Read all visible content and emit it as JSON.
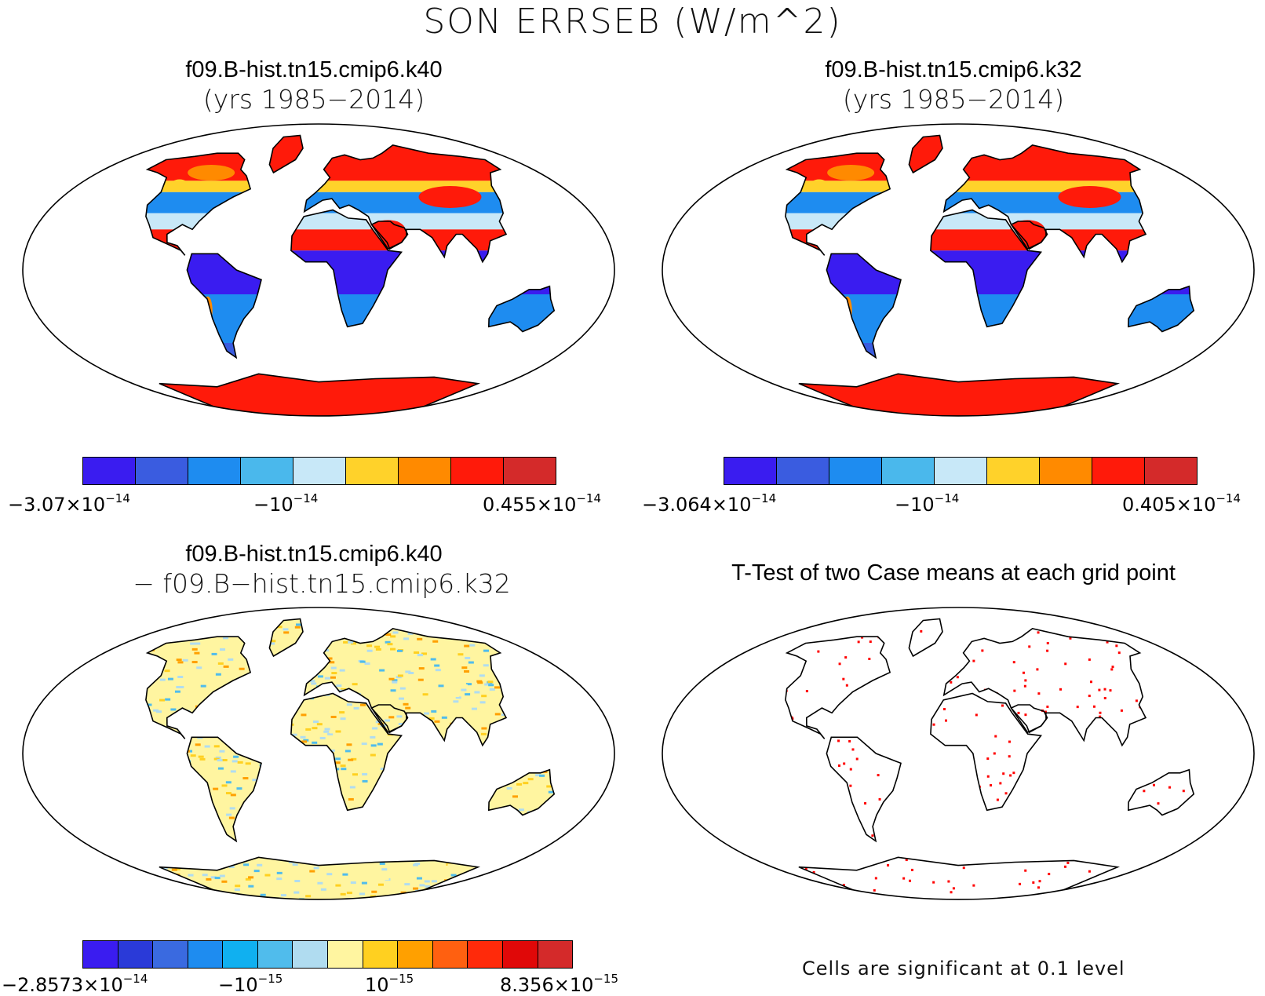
{
  "title": "SON ERRSEB (W/m^2)",
  "panels": {
    "k40": {
      "title": "f09.B-hist.tn15.cmip6.k40",
      "subtitle": "(yrs 1985−2014)"
    },
    "k32": {
      "title": "f09.B-hist.tn15.cmip6.k32",
      "subtitle": "(yrs 1985−2014)"
    },
    "diff": {
      "title": "f09.B-hist.tn15.cmip6.k40",
      "subtitle": "−  f09.B−hist.tn15.cmip6.k32"
    },
    "ttest": {
      "title": "T-Test of two Case means at each grid point",
      "note": "Cells are significant at 0.1 level"
    }
  },
  "colorbars": {
    "k40": {
      "colors": [
        "#3a1cf0",
        "#3a5ce0",
        "#1e8cf0",
        "#4ab8ec",
        "#c8e8f8",
        "#ffd22a",
        "#ff8a00",
        "#ff1a0a",
        "#d42a2a"
      ],
      "labels": [
        {
          "mant": "−3.07×10",
          "exp": "−14"
        },
        {
          "mant": "−10",
          "exp": "−14"
        },
        {
          "mant": "0.455×10",
          "exp": "−14"
        }
      ]
    },
    "k32": {
      "colors": [
        "#3a1cf0",
        "#3a5ce0",
        "#1e8cf0",
        "#4ab8ec",
        "#c8e8f8",
        "#ffd22a",
        "#ff8a00",
        "#ff1a0a",
        "#d42a2a"
      ],
      "labels": [
        {
          "mant": "−3.064×10",
          "exp": "−14"
        },
        {
          "mant": "−10",
          "exp": "−14"
        },
        {
          "mant": "0.405×10",
          "exp": "−14"
        }
      ]
    },
    "diff": {
      "colors": [
        "#3a1cf0",
        "#2a3ad8",
        "#3a6ae0",
        "#1e8cf0",
        "#10b0f0",
        "#50bcec",
        "#b0dcf0",
        "#fff5a0",
        "#ffd020",
        "#ffa000",
        "#ff6010",
        "#ff2a0a",
        "#e00808",
        "#d42a2a"
      ],
      "labels": [
        {
          "mant": "−2.8573×10",
          "exp": "−14"
        },
        {
          "mant": "−10",
          "exp": "−15"
        },
        {
          "mant": "10",
          "exp": "−15"
        },
        {
          "mant": "8.356×10",
          "exp": "−15"
        }
      ]
    }
  }
}
